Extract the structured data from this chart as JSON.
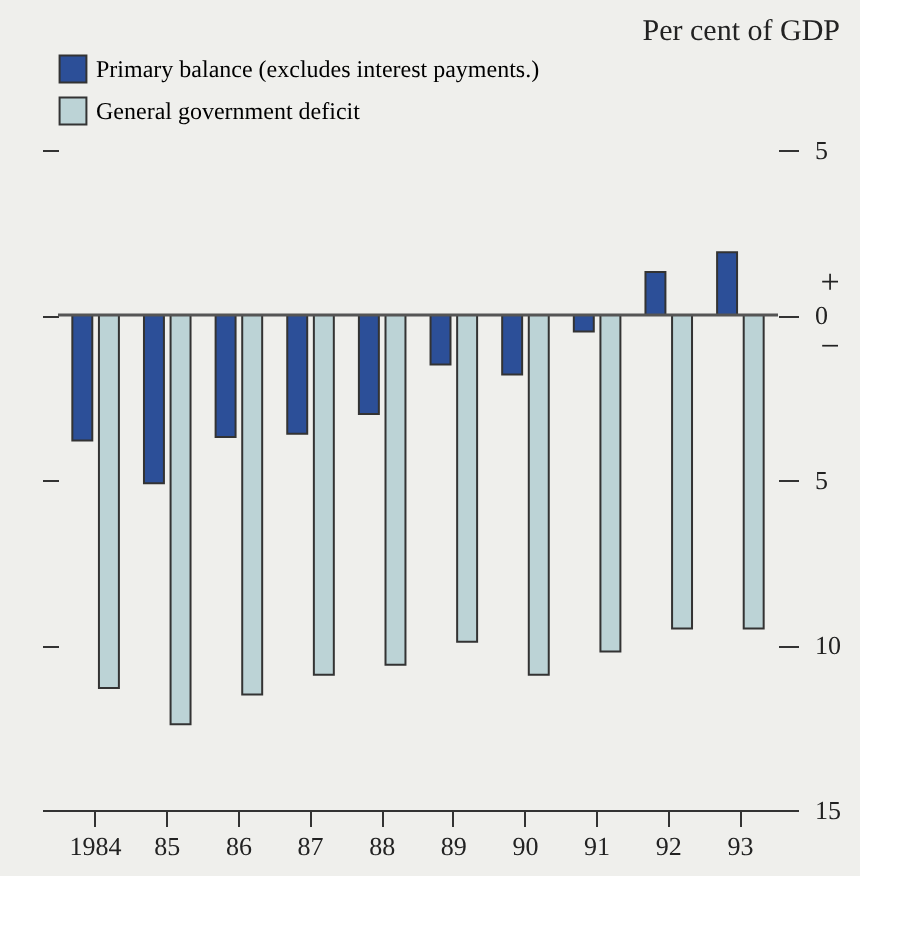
{
  "chart_data": {
    "type": "bar",
    "ylabel": "Per cent of GDP",
    "categories": [
      "1984",
      "85",
      "86",
      "87",
      "88",
      "89",
      "90",
      "91",
      "92",
      "93"
    ],
    "series": [
      {
        "name": "Primary balance (excludes interest payments.)",
        "color": "#2c4f98",
        "values": [
          -3.8,
          -5.1,
          -3.7,
          -3.6,
          -3.0,
          -1.5,
          -1.8,
          -0.5,
          1.3,
          1.9
        ]
      },
      {
        "name": "General government deficit",
        "color": "#bcd3d6",
        "values": [
          -11.3,
          -12.4,
          -11.5,
          -10.9,
          -10.6,
          -9.9,
          -10.9,
          -10.2,
          -9.5,
          -9.5
        ]
      }
    ],
    "ylim": [
      -15,
      5
    ],
    "yticks": [
      {
        "value": 5,
        "label": "5"
      },
      0,
      {
        "value": -5,
        "label": "5"
      },
      {
        "value": -10,
        "label": "10"
      },
      {
        "value": -15,
        "label": "15"
      }
    ],
    "ref_lines": [
      {
        "axis": "y",
        "value": 0,
        "color": "#555555"
      }
    ],
    "annotations": [
      "+",
      "−"
    ],
    "legend": "top left",
    "grid": false
  }
}
